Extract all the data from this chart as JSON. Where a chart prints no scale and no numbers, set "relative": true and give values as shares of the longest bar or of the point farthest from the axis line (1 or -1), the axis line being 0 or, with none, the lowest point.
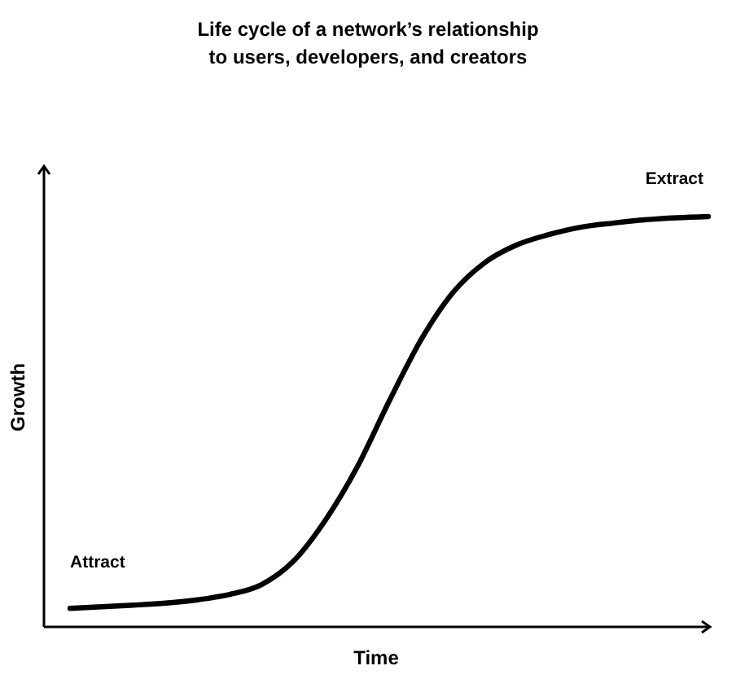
{
  "chart_data": {
    "type": "line",
    "title": "Life cycle of a network’s relationship\nto users, developers, and creators",
    "xlabel": "Time",
    "ylabel": "Growth",
    "relative": true,
    "marker": "none",
    "line_style": "solid",
    "categories": [
      null,
      null,
      null,
      null,
      null,
      null,
      null,
      null,
      null,
      null,
      null,
      null,
      null,
      null,
      null,
      null,
      null,
      null,
      null,
      null,
      null
    ],
    "series": [
      {
        "color": "#000000",
        "values": [
          0.045,
          0.049,
          0.053,
          0.058,
          0.066,
          0.079,
          0.103,
          0.16,
          0.26,
          0.39,
          0.55,
          0.7,
          0.815,
          0.888,
          0.931,
          0.956,
          0.974,
          0.984,
          0.992,
          0.997,
          1
        ]
      }
    ],
    "annotations": [
      "Attract",
      "Extract"
    ]
  }
}
